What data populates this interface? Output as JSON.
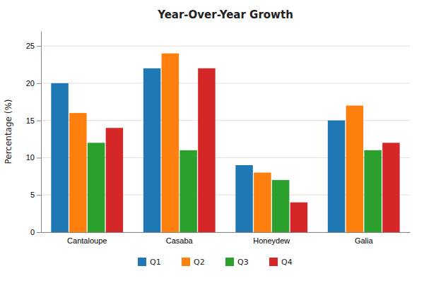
{
  "chart_data": {
    "type": "bar",
    "title": "Year-Over-Year Growth",
    "ylabel": "Percentage (%)",
    "categories": [
      "Cantaloupe",
      "Casaba",
      "Honeydew",
      "Galia"
    ],
    "series": [
      {
        "name": "Q1",
        "values": [
          20,
          22,
          9,
          15
        ]
      },
      {
        "name": "Q2",
        "values": [
          16,
          24,
          8,
          17
        ]
      },
      {
        "name": "Q3",
        "values": [
          12,
          11,
          7,
          11
        ]
      },
      {
        "name": "Q4",
        "values": [
          14,
          22,
          4,
          12
        ]
      }
    ],
    "ylim": [
      0,
      27
    ],
    "yticks": [
      0,
      5,
      10,
      15,
      20,
      25
    ],
    "grid": true
  }
}
